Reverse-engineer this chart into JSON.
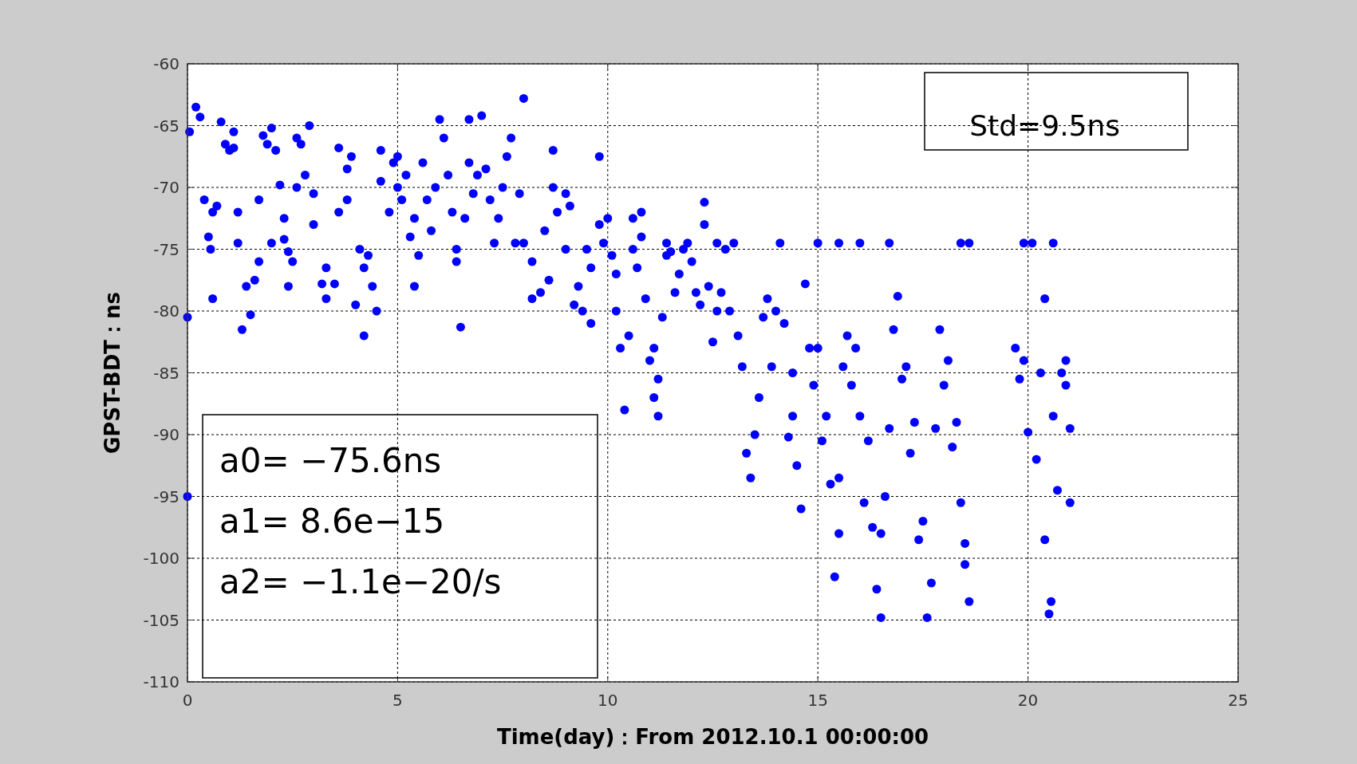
{
  "chart_data": {
    "type": "scatter",
    "xlabel": "Time(day)：From 2012.10.1 00:00:00",
    "ylabel": "GPST-BDT：ns",
    "xlim": [
      0,
      25
    ],
    "xticks": [
      0,
      5,
      10,
      15,
      20,
      25
    ],
    "ylim": [
      -110,
      -60
    ],
    "yticks": [
      -110,
      -105,
      -100,
      -95,
      -90,
      -85,
      -80,
      -75,
      -70,
      -65,
      -60
    ],
    "grid": true,
    "marker": "circle",
    "annotations": [
      "Std=9.5ns",
      "a0= −75.6ns",
      "a1= 8.6e−15",
      "a2= −1.1e−20/s"
    ],
    "series": [
      {
        "color": "#0000ff",
        "x": [
          0.05,
          0.2,
          0.3,
          0.4,
          0.5,
          0.55,
          0.6,
          0.7,
          0.6,
          0.9,
          1.0,
          1.1,
          1.1,
          0.8,
          0,
          0,
          1.2,
          1.2,
          1.3,
          1.4,
          1.5,
          1.6,
          1.7,
          1.7,
          1.8,
          1.9,
          2.0,
          2.0,
          2.1,
          2.2,
          2.3,
          2.3,
          2.4,
          2.4,
          2.5,
          2.6,
          2.6,
          2.7,
          2.8,
          2.9,
          3.0,
          3.0,
          3.2,
          3.3,
          3.3,
          3.5,
          3.6,
          3.6,
          3.8,
          3.8,
          3.9,
          4.1,
          4.2,
          4.2,
          4.3,
          4.4,
          4.5,
          4.0,
          4.6,
          4.6,
          4.8,
          4.9,
          5.0,
          5.0,
          5.1,
          5.2,
          5.3,
          5.4,
          5.5,
          5.4,
          5.6,
          5.7,
          5.8,
          5.9,
          6.0,
          6.1,
          6.2,
          6.3,
          6.4,
          6.4,
          6.5,
          6.6,
          6.7,
          6.7,
          6.8,
          6.9,
          7.0,
          7.1,
          7.2,
          7.3,
          7.4,
          7.5,
          7.6,
          7.7,
          7.8,
          7.9,
          8.0,
          8.0,
          8.2,
          8.2,
          8.4,
          8.6,
          8.5,
          8.7,
          8.7,
          8.8,
          9.0,
          9.1,
          9.0,
          9.2,
          9.3,
          9.4,
          9.5,
          9.6,
          9.6,
          9.8,
          9.8,
          9.9,
          10.0,
          10.1,
          10.2,
          10.2,
          10.3,
          10.4,
          10.5,
          10.6,
          10.6,
          10.7,
          10.8,
          10.8,
          10.9,
          11.0,
          11.1,
          11.1,
          11.2,
          11.2,
          11.3,
          11.4,
          11.4,
          11.5,
          11.6,
          11.7,
          11.8,
          11.9,
          12.0,
          12.1,
          12.2,
          12.3,
          12.3,
          12.4,
          12.5,
          12.6,
          12.6,
          12.7,
          12.8,
          12.9,
          13.0,
          13.1,
          13.2,
          13.3,
          13.4,
          13.5,
          13.6,
          13.7,
          13.8,
          13.9,
          14.0,
          14.1,
          14.2,
          14.3,
          14.4,
          14.5,
          14.6,
          14.4,
          14.7,
          14.8,
          14.9,
          15.0,
          15.1,
          15.0,
          15.2,
          15.3,
          15.4,
          15.5,
          15.5,
          15.5,
          15.6,
          15.7,
          15.8,
          15.9,
          16.0,
          16.1,
          16.2,
          16.0,
          16.3,
          16.4,
          16.5,
          16.5,
          16.6,
          16.7,
          16.7,
          16.8,
          16.9,
          17.0,
          17.1,
          17.2,
          17.3,
          17.4,
          17.5,
          17.6,
          17.7,
          17.8,
          17.9,
          18.0,
          18.1,
          18.2,
          18.3,
          18.4,
          18.4,
          18.5,
          18.6,
          18.6,
          18.5,
          19.7,
          19.8,
          19.9,
          20.0,
          19.9,
          20.1,
          20.2,
          20.3,
          20.4,
          20.5,
          20.4,
          20.6,
          20.7,
          20.6,
          20.8,
          20.9,
          20.9,
          21.0,
          21.0,
          20.55
        ],
        "values": [
          -65.5,
          -63.5,
          -64.3,
          -71,
          -74,
          -75,
          -72,
          -71.5,
          -79,
          -66.5,
          -67,
          -65.5,
          -66.8,
          -64.7,
          -80.5,
          -95,
          -72,
          -74.5,
          -81.5,
          -78,
          -80.3,
          -77.5,
          -76,
          -71,
          -65.8,
          -66.5,
          -65.2,
          -74.5,
          -67,
          -69.8,
          -74.2,
          -72.5,
          -75.2,
          -78,
          -76,
          -70,
          -66,
          -66.5,
          -69,
          -65,
          -70.5,
          -73,
          -77.8,
          -76.5,
          -79,
          -77.8,
          -66.8,
          -72,
          -71,
          -68.5,
          -67.5,
          -75,
          -76.5,
          -82,
          -75.5,
          -78,
          -80,
          -79.5,
          -69.5,
          -67,
          -72,
          -68,
          -70,
          -67.5,
          -71,
          -69,
          -74,
          -72.5,
          -75.5,
          -78,
          -68,
          -71,
          -73.5,
          -70,
          -64.5,
          -66,
          -69,
          -72,
          -76,
          -75,
          -81.3,
          -72.5,
          -64.5,
          -68,
          -70.5,
          -69,
          -64.2,
          -68.5,
          -71,
          -74.5,
          -72.5,
          -70,
          -67.5,
          -66,
          -74.5,
          -70.5,
          -62.8,
          -74.5,
          -76,
          -79,
          -78.5,
          -77.5,
          -73.5,
          -67,
          -70,
          -72,
          -70.5,
          -71.5,
          -75,
          -79.5,
          -78,
          -80,
          -75,
          -81,
          -76.5,
          -73,
          -67.5,
          -74.5,
          -72.5,
          -75.5,
          -77,
          -80,
          -83,
          -88,
          -82,
          -75,
          -72.5,
          -76.5,
          -74,
          -72,
          -79,
          -84,
          -87,
          -83,
          -85.5,
          -88.5,
          -80.5,
          -75.5,
          -74.5,
          -75.2,
          -78.5,
          -77,
          -75,
          -74.5,
          -76,
          -78.5,
          -79.5,
          -71.2,
          -73,
          -78,
          -82.5,
          -80,
          -74.5,
          -78.5,
          -75,
          -80,
          -74.5,
          -82,
          -84.5,
          -91.5,
          -93.5,
          -90,
          -87,
          -80.5,
          -79,
          -84.5,
          -80,
          -74.5,
          -81,
          -90.2,
          -88.5,
          -92.5,
          -96,
          -85,
          -77.8,
          -83,
          -86,
          -83,
          -90.5,
          -74.5,
          -88.5,
          -94,
          -101.5,
          -98,
          -93.5,
          -74.5,
          -84.5,
          -82,
          -86,
          -83,
          -88.5,
          -95.5,
          -90.5,
          -74.5,
          -97.5,
          -102.5,
          -104.8,
          -98,
          -95,
          -89.5,
          -74.5,
          -81.5,
          -78.8,
          -85.5,
          -84.5,
          -91.5,
          -89,
          -98.5,
          -97,
          -104.8,
          -102,
          -89.5,
          -81.5,
          -86,
          -84,
          -91,
          -89,
          -95.5,
          -74.5,
          -100.5,
          -103.5,
          -74.5,
          -98.8,
          -83,
          -85.5,
          -84,
          -89.8,
          -74.5,
          -74.5,
          -92,
          -85,
          -98.5,
          -104.5,
          -79,
          -74.5,
          -94.5,
          -88.5,
          -85,
          -86,
          -84,
          -89.5,
          -95.5,
          -103.5
        ]
      }
    ]
  }
}
